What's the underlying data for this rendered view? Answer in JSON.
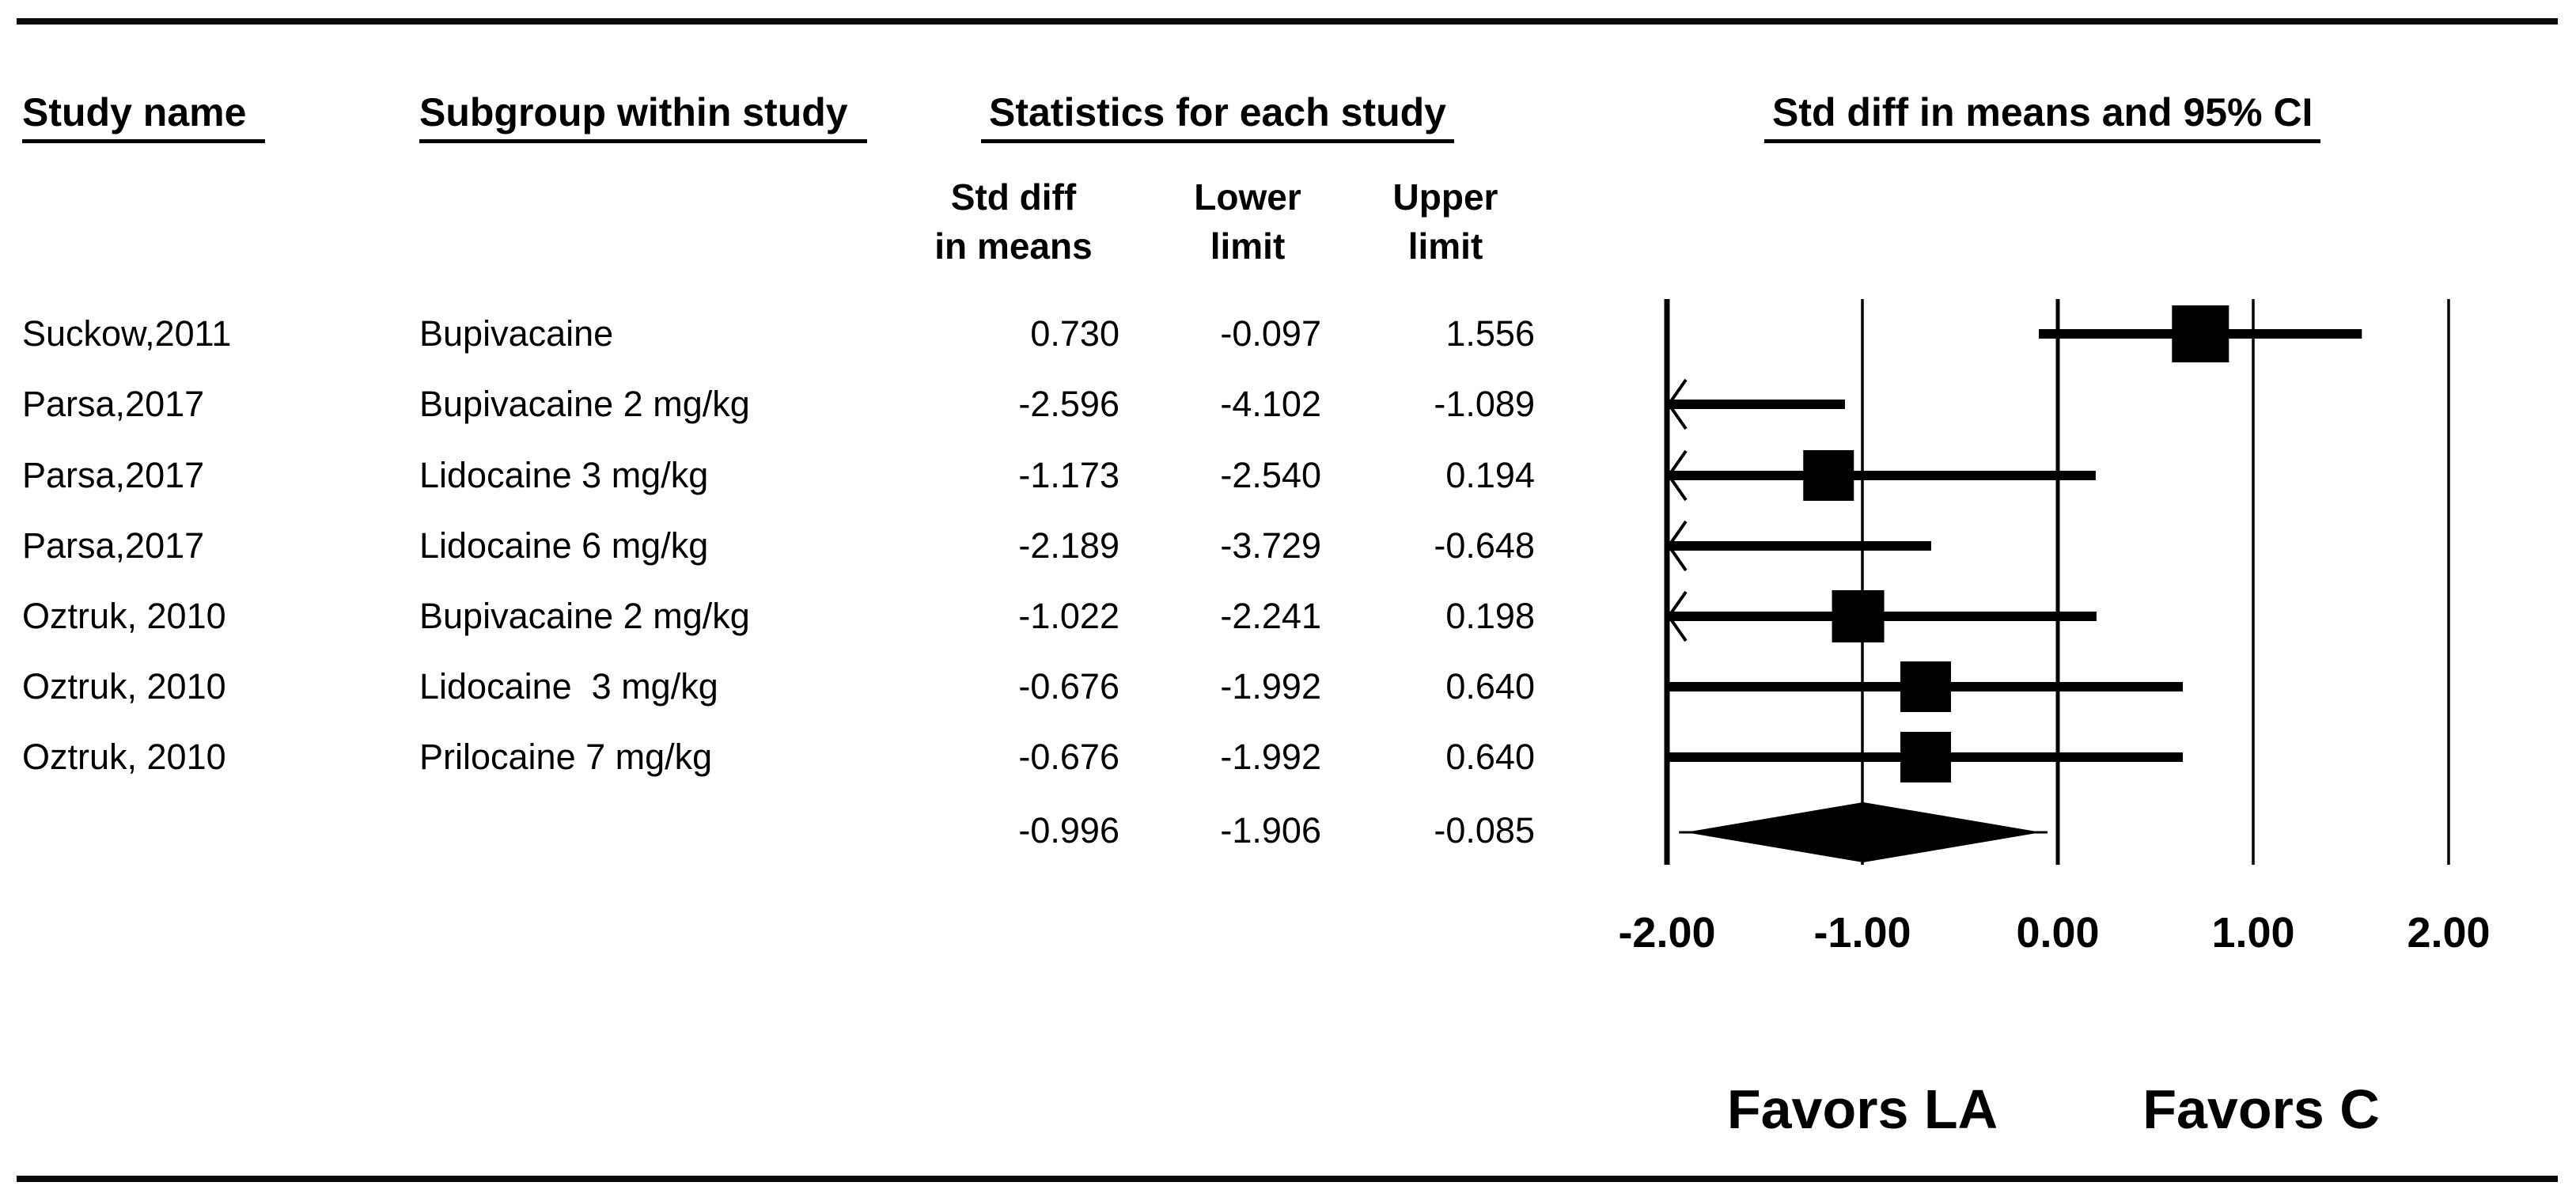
{
  "page": {
    "background": "#ffffff",
    "ink": "#000000"
  },
  "table": {
    "headers": {
      "study": "Study name",
      "subgroup": "Subgroup within study",
      "statistics": "Statistics for each study",
      "plot": "Std diff in means and 95% CI"
    },
    "subheaders": {
      "std_diff": "Std diff\nin means",
      "lower": "Lower\nlimit",
      "upper": "Upper\nlimit"
    }
  },
  "chart_data": {
    "type": "forest",
    "title": "Std diff in means and 95% CI",
    "xlabel": "Std diff in means",
    "x_axis": {
      "min": -2.0,
      "max": 2.0,
      "tick_values": [
        -2,
        -1,
        0,
        1,
        2
      ],
      "tick_labels": [
        "-2.00",
        "-1.00",
        "0.00",
        "1.00",
        "2.00"
      ],
      "zero_line": 0.0,
      "grid": true
    },
    "favors": {
      "left": "Favors LA",
      "right": "Favors C"
    },
    "rows": [
      {
        "study": "Suckow,2011",
        "subgroup": "Bupivacaine",
        "std_diff": 0.73,
        "lower": -0.097,
        "upper": 1.556,
        "box_size": 72
      },
      {
        "study": "Parsa,2017",
        "subgroup": "Bupivacaine 2 mg/kg",
        "std_diff": -2.596,
        "lower": -4.102,
        "upper": -1.089,
        "box_size": 64
      },
      {
        "study": "Parsa,2017",
        "subgroup": "Lidocaine 3 mg/kg",
        "std_diff": -1.173,
        "lower": -2.54,
        "upper": 0.194,
        "box_size": 64
      },
      {
        "study": "Parsa,2017",
        "subgroup": "Lidocaine 6 mg/kg",
        "std_diff": -2.189,
        "lower": -3.729,
        "upper": -0.648,
        "box_size": 64
      },
      {
        "study": "Oztruk, 2010",
        "subgroup": "Bupivacaine 2 mg/kg",
        "std_diff": -1.022,
        "lower": -2.241,
        "upper": 0.198,
        "box_size": 66
      },
      {
        "study": "Oztruk, 2010",
        "subgroup": "Lidocaine  3 mg/kg",
        "std_diff": -0.676,
        "lower": -1.992,
        "upper": 0.64,
        "box_size": 64
      },
      {
        "study": "Oztruk, 2010",
        "subgroup": "Prilocaine 7 mg/kg",
        "std_diff": -0.676,
        "lower": -1.992,
        "upper": 0.64,
        "box_size": 64
      }
    ],
    "summary": {
      "std_diff": -0.996,
      "lower": -1.906,
      "upper": -0.085
    }
  }
}
